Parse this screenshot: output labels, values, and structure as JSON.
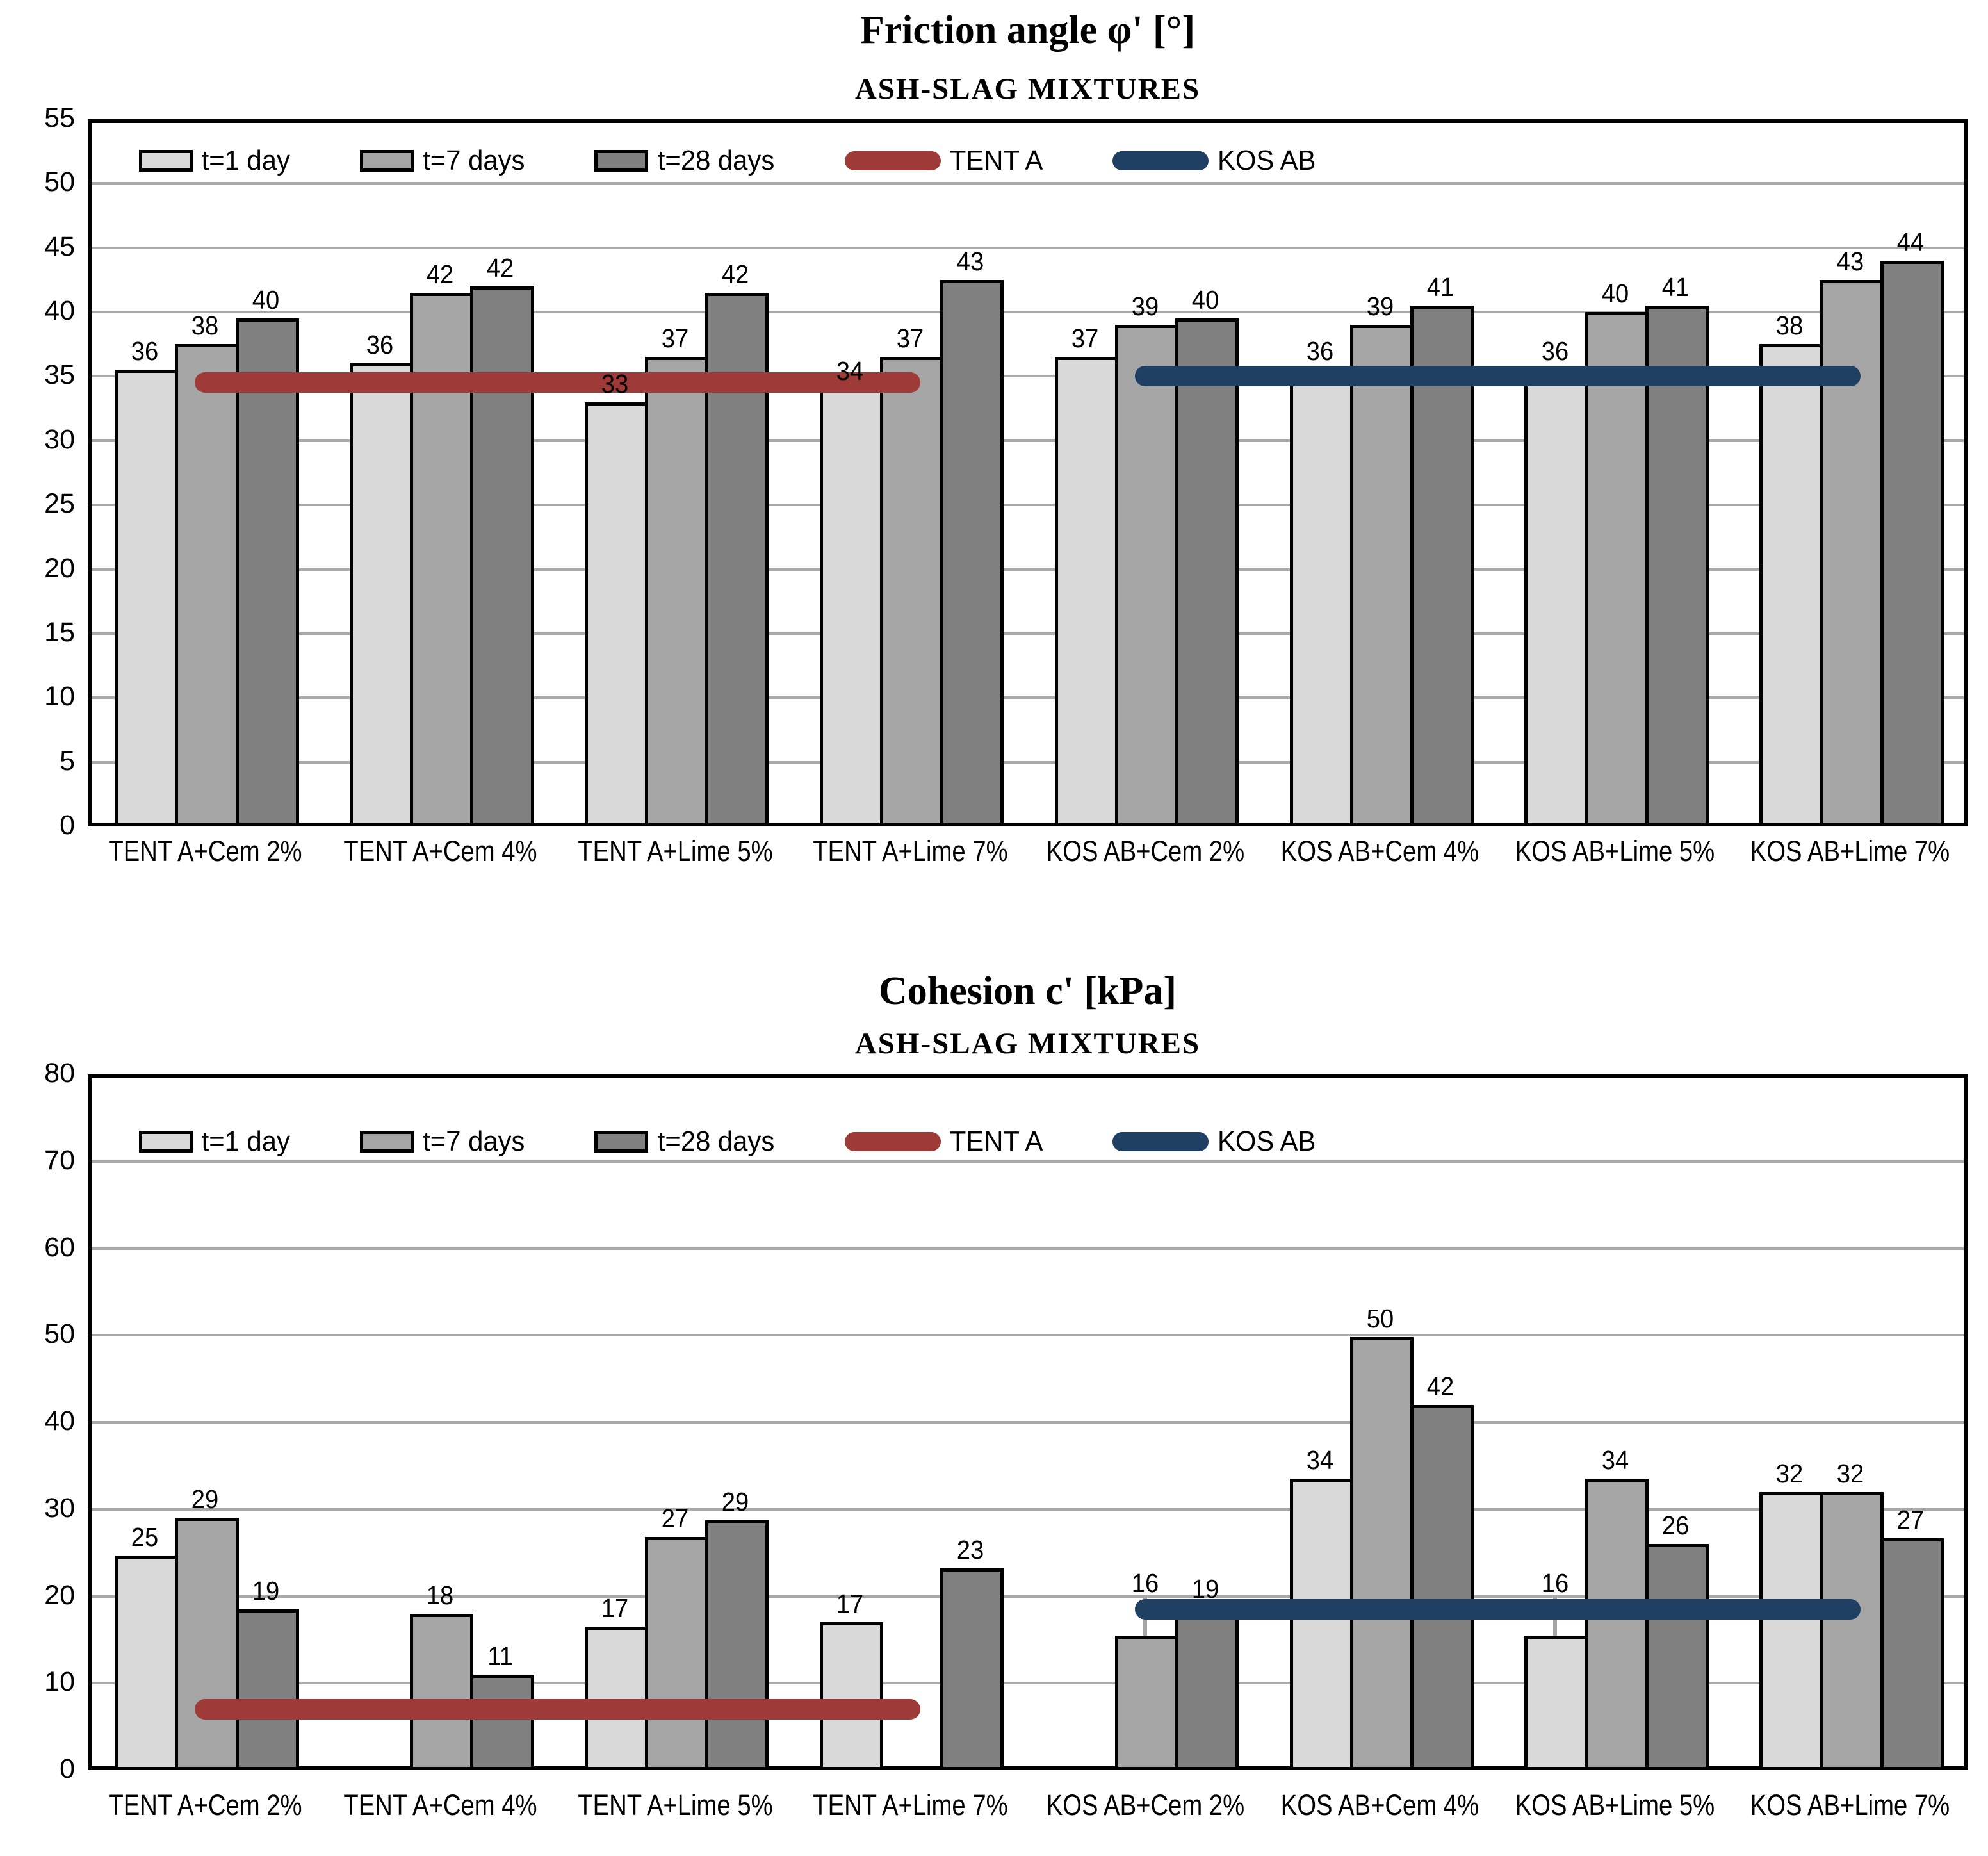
{
  "colors": {
    "series_1day": "#d9d9d9",
    "series_7days": "#a6a6a6",
    "series_28days": "#808080",
    "tent_a_line": "#9e3a38",
    "kos_ab_line": "#1f3f63",
    "gridline": "#a9a9a9",
    "bar_border": "#000000"
  },
  "legend_labels": [
    "t=1 day",
    "t=7 days",
    "t=28 days",
    "TENT A",
    "KOS AB"
  ],
  "chart_data": [
    {
      "type": "bar",
      "title": "Friction angle φ'  [°]",
      "subtitle": "ASH-SLAG MIXTURES",
      "xlabel": "",
      "ylabel": "",
      "ylim": [
        0,
        55
      ],
      "y_ticks": [
        0,
        5,
        10,
        15,
        20,
        25,
        30,
        35,
        40,
        45,
        50,
        55
      ],
      "grid": true,
      "legend_position": "top-inside",
      "categories": [
        "TENT A+Cem 2%",
        "TENT A+Cem 4%",
        "TENT A+Lime 5%",
        "TENT A+Lime 7%",
        "KOS AB+Cem 2%",
        "KOS AB+Cem 4%",
        "KOS AB+Lime 5%",
        "KOS AB+Lime 7%"
      ],
      "series": [
        {
          "name": "t=1 day",
          "color": "#d9d9d9",
          "values": [
            36,
            36,
            33,
            34,
            37,
            36,
            36,
            38
          ],
          "draw_values": [
            35.5,
            36,
            33,
            34,
            36.5,
            35.5,
            35.5,
            37.5
          ]
        },
        {
          "name": "t=7 days",
          "color": "#a6a6a6",
          "values": [
            38,
            42,
            37,
            37,
            39,
            39,
            40,
            43
          ],
          "draw_values": [
            37.5,
            41.5,
            36.5,
            36.5,
            39,
            39,
            40,
            42.5
          ]
        },
        {
          "name": "t=28 days",
          "color": "#808080",
          "values": [
            40,
            42,
            42,
            43,
            40,
            41,
            41,
            44
          ],
          "draw_values": [
            39.5,
            42,
            41.5,
            42.5,
            39.5,
            40.5,
            40.5,
            44
          ]
        }
      ],
      "ref_lines": [
        {
          "name": "TENT A",
          "color": "#9e3a38",
          "value": 34.5,
          "from_category": 0,
          "to_category": 3
        },
        {
          "name": "KOS AB",
          "color": "#1f3f63",
          "value": 35,
          "from_category": 4,
          "to_category": 7
        }
      ],
      "leader_lines": []
    },
    {
      "type": "bar",
      "title": "Cohesion c' [kPa]",
      "subtitle": "ASH-SLAG MIXTURES",
      "xlabel": "",
      "ylabel": "",
      "ylim": [
        0,
        80
      ],
      "y_ticks": [
        0,
        10,
        20,
        30,
        40,
        50,
        60,
        70,
        80
      ],
      "grid": true,
      "legend_position": "top-inside",
      "categories": [
        "TENT A+Cem 2%",
        "TENT A+Cem 4%",
        "TENT A+Lime 5%",
        "TENT A+Lime 7%",
        "KOS AB+Cem 2%",
        "KOS AB+Cem 4%",
        "KOS AB+Lime 5%",
        "KOS AB+Lime 7%"
      ],
      "series": [
        {
          "name": "t=1 day",
          "color": "#d9d9d9",
          "values": [
            25,
            null,
            17,
            17,
            null,
            34,
            16,
            32
          ],
          "draw_values": [
            24.7,
            null,
            16.5,
            17,
            null,
            33.5,
            15.5,
            32
          ]
        },
        {
          "name": "t=7 days",
          "color": "#a6a6a6",
          "values": [
            29,
            18,
            27,
            null,
            16,
            50,
            34,
            32
          ],
          "draw_values": [
            29,
            18,
            26.8,
            null,
            15.5,
            49.8,
            33.5,
            32
          ]
        },
        {
          "name": "t=28 days",
          "color": "#808080",
          "values": [
            19,
            11,
            29,
            23,
            19,
            42,
            26,
            27
          ],
          "draw_values": [
            18.5,
            11,
            28.7,
            23.2,
            18.7,
            42,
            26,
            26.7
          ]
        }
      ],
      "ref_lines": [
        {
          "name": "TENT A",
          "color": "#9e3a38",
          "value": 7,
          "from_category": 0,
          "to_category": 3
        },
        {
          "name": "KOS AB",
          "color": "#1f3f63",
          "value": 18.5,
          "from_category": 4,
          "to_category": 7
        }
      ],
      "leader_lines": [
        {
          "series_index": 1,
          "category_index": 4
        },
        {
          "series_index": 0,
          "category_index": 6
        }
      ]
    }
  ]
}
